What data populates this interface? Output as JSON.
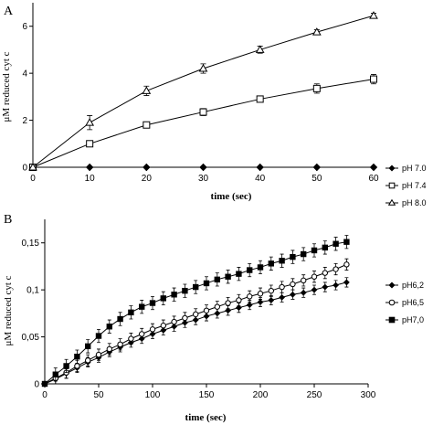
{
  "chart_data": [
    {
      "type": "line",
      "panel_label": "A",
      "xlabel": "time (sec)",
      "ylabel": "μM reduced cyt c",
      "xlim": [
        0,
        60
      ],
      "ylim": [
        0,
        7
      ],
      "x_ticks": [
        "0",
        "10",
        "20",
        "30",
        "40",
        "50",
        "60"
      ],
      "y_ticks": [
        "0",
        "2",
        "4",
        "6"
      ],
      "legend_position": "right",
      "x": [
        0,
        10,
        20,
        30,
        40,
        50,
        60
      ],
      "series": [
        {
          "name": "pH 7.0",
          "marker": "diamond-filled",
          "values": [
            0,
            0,
            0,
            0,
            0,
            0,
            0
          ],
          "errors": [
            0,
            0,
            0,
            0,
            0,
            0,
            0
          ]
        },
        {
          "name": "pH 7.4",
          "marker": "square-open",
          "values": [
            0,
            1.0,
            1.8,
            2.35,
            2.9,
            3.35,
            3.75
          ],
          "errors": [
            0,
            0.1,
            0.1,
            0.15,
            0.1,
            0.2,
            0.2
          ]
        },
        {
          "name": "pH 8.0",
          "marker": "triangle-open",
          "values": [
            0,
            1.9,
            3.25,
            4.2,
            5.0,
            5.75,
            6.45
          ],
          "errors": [
            0,
            0.3,
            0.2,
            0.2,
            0.15,
            0.1,
            0.1
          ]
        }
      ]
    },
    {
      "type": "line",
      "panel_label": "B",
      "xlabel": "time (sec)",
      "ylabel": "μM reduced cyt c",
      "xlim": [
        0,
        300
      ],
      "ylim": [
        0,
        0.175
      ],
      "x_ticks": [
        "0",
        "50",
        "100",
        "150",
        "200",
        "250",
        "300"
      ],
      "y_ticks": [
        "0",
        "0,05",
        "0,1",
        "0,15"
      ],
      "legend_position": "right",
      "x": [
        0,
        10,
        20,
        30,
        40,
        50,
        60,
        70,
        80,
        90,
        100,
        110,
        120,
        130,
        140,
        150,
        160,
        170,
        180,
        190,
        200,
        210,
        220,
        230,
        240,
        250,
        260,
        270,
        280
      ],
      "series": [
        {
          "name": "pH6,2",
          "marker": "diamond-filled",
          "values": [
            0,
            0.005,
            0.011,
            0.017,
            0.023,
            0.028,
            0.034,
            0.039,
            0.044,
            0.048,
            0.053,
            0.057,
            0.061,
            0.065,
            0.068,
            0.072,
            0.075,
            0.078,
            0.081,
            0.084,
            0.087,
            0.089,
            0.092,
            0.095,
            0.097,
            0.1,
            0.103,
            0.105,
            0.108
          ],
          "error": 0.005
        },
        {
          "name": "pH6,5",
          "marker": "circle-open",
          "values": [
            0,
            0.006,
            0.012,
            0.019,
            0.025,
            0.031,
            0.037,
            0.042,
            0.048,
            0.053,
            0.058,
            0.062,
            0.066,
            0.07,
            0.074,
            0.078,
            0.082,
            0.086,
            0.089,
            0.093,
            0.096,
            0.099,
            0.103,
            0.106,
            0.11,
            0.114,
            0.118,
            0.122,
            0.127
          ],
          "error": 0.006
        },
        {
          "name": "pH7,0",
          "marker": "square-filled",
          "values": [
            0,
            0.01,
            0.019,
            0.029,
            0.04,
            0.051,
            0.061,
            0.069,
            0.076,
            0.082,
            0.086,
            0.091,
            0.095,
            0.099,
            0.103,
            0.107,
            0.111,
            0.114,
            0.117,
            0.121,
            0.124,
            0.128,
            0.131,
            0.135,
            0.138,
            0.142,
            0.145,
            0.149,
            0.151
          ],
          "error": 0.007
        }
      ]
    }
  ]
}
